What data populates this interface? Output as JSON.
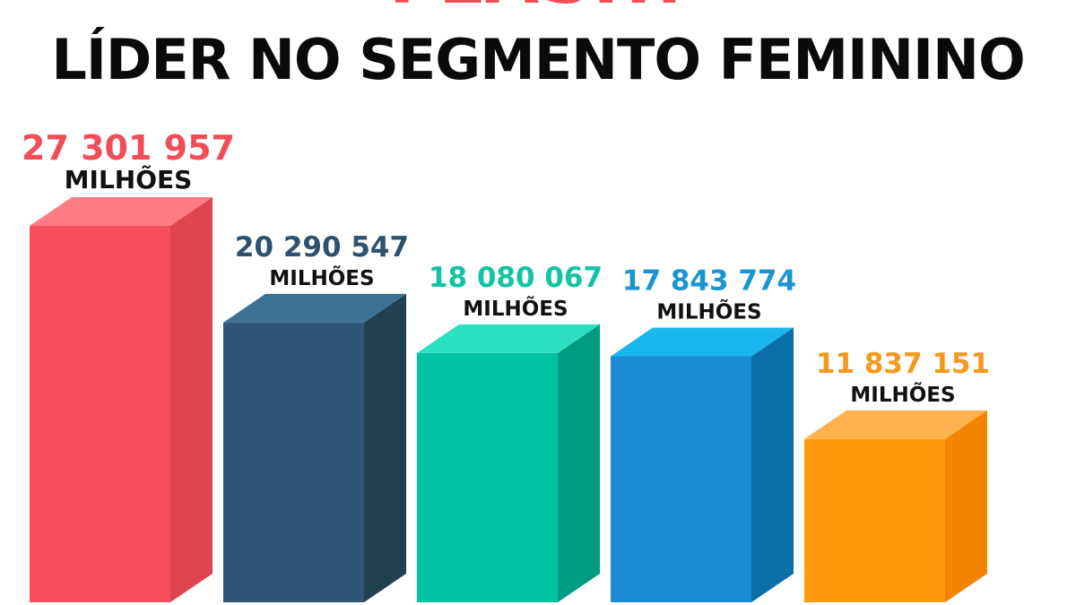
{
  "header": {
    "top_line": "FLASH!",
    "title": "LÍDER NO SEGMENTO FEMININO"
  },
  "colors": {
    "accent": "#f04d58",
    "title": "#0a0a0a"
  },
  "chart_data": {
    "type": "bar",
    "title": "LÍDER NO SEGMENTO FEMININO",
    "xlabel": "",
    "ylabel": "",
    "grid": false,
    "legend": "none",
    "style": "3d-columns",
    "ylim": [
      0,
      30000000
    ],
    "categories": [
      "",
      "",
      "",
      "",
      ""
    ],
    "series": [
      {
        "values": [
          27301957,
          20290547,
          18080067,
          17843774,
          11837151
        ]
      }
    ],
    "value_labels": [
      "27 301 957",
      "20 290 547",
      "18 080 067",
      "17 843 774",
      "11 837 151"
    ],
    "unit_label": "MILHÕES",
    "bar_colors": [
      {
        "front": "#f5505b",
        "side": "#e04450",
        "top": "#ff7c85",
        "label": "#f04d58"
      },
      {
        "front": "#2f5674",
        "side": "#22404f",
        "top": "#3d7293",
        "label": "#2d5270"
      },
      {
        "front": "#00c3a3",
        "side": "#009c82",
        "top": "#2ee0c3",
        "label": "#12c4a4"
      },
      {
        "front": "#1a8cd4",
        "side": "#0a6fa8",
        "top": "#1ab7ed",
        "label": "#1b95d0"
      },
      {
        "front": "#ff9a0f",
        "side": "#f28400",
        "top": "#ffb24d",
        "label": "#f7981c"
      }
    ]
  }
}
